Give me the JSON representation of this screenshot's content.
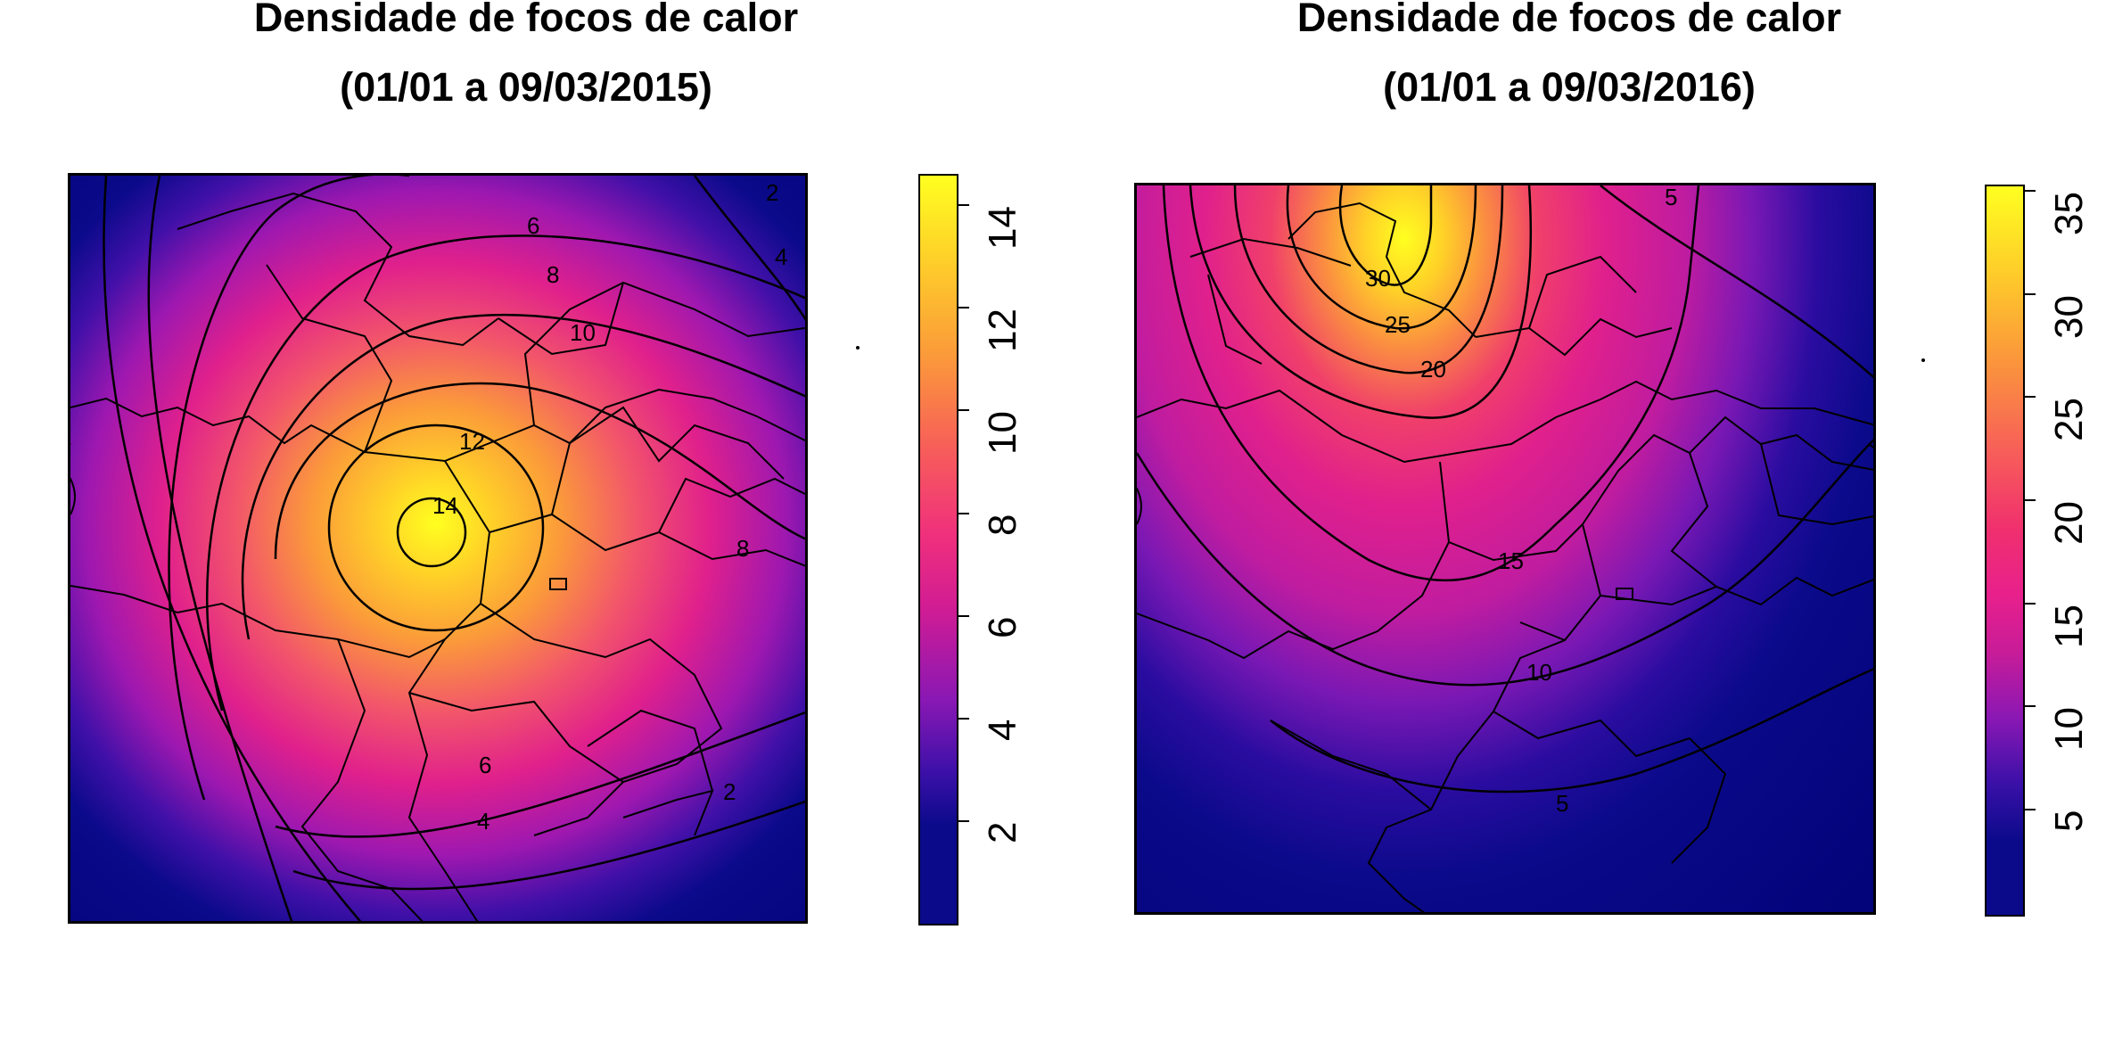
{
  "panels": [
    {
      "title_line1": "Densidade de focos de calor",
      "title_line2": "(01/01 a 09/03/2015)",
      "legend_ticks": [
        "2",
        "4",
        "6",
        "8",
        "10",
        "12",
        "14"
      ],
      "contour_labels": [
        "2",
        "4",
        "6",
        "8",
        "10",
        "12",
        "14",
        "8",
        "6",
        "4",
        "2"
      ],
      "value_range": [
        0,
        14.6
      ],
      "hotspot_peak": 14
    },
    {
      "title_line1": "Densidade de focos de calor",
      "title_line2": "(01/01 a 09/03/2016)",
      "legend_ticks": [
        "5",
        "10",
        "15",
        "20",
        "25",
        "30",
        "35"
      ],
      "contour_labels": [
        "5",
        "30",
        "25",
        "20",
        "15",
        "10",
        "5"
      ],
      "value_range": [
        0,
        35.5
      ],
      "hotspot_peak": 35
    }
  ],
  "colors": {
    "low": "#0a0a8a",
    "mid_low": "#7a1bb8",
    "mid": "#e8208c",
    "mid_high": "#f7803c",
    "high": "#ffff20"
  }
}
